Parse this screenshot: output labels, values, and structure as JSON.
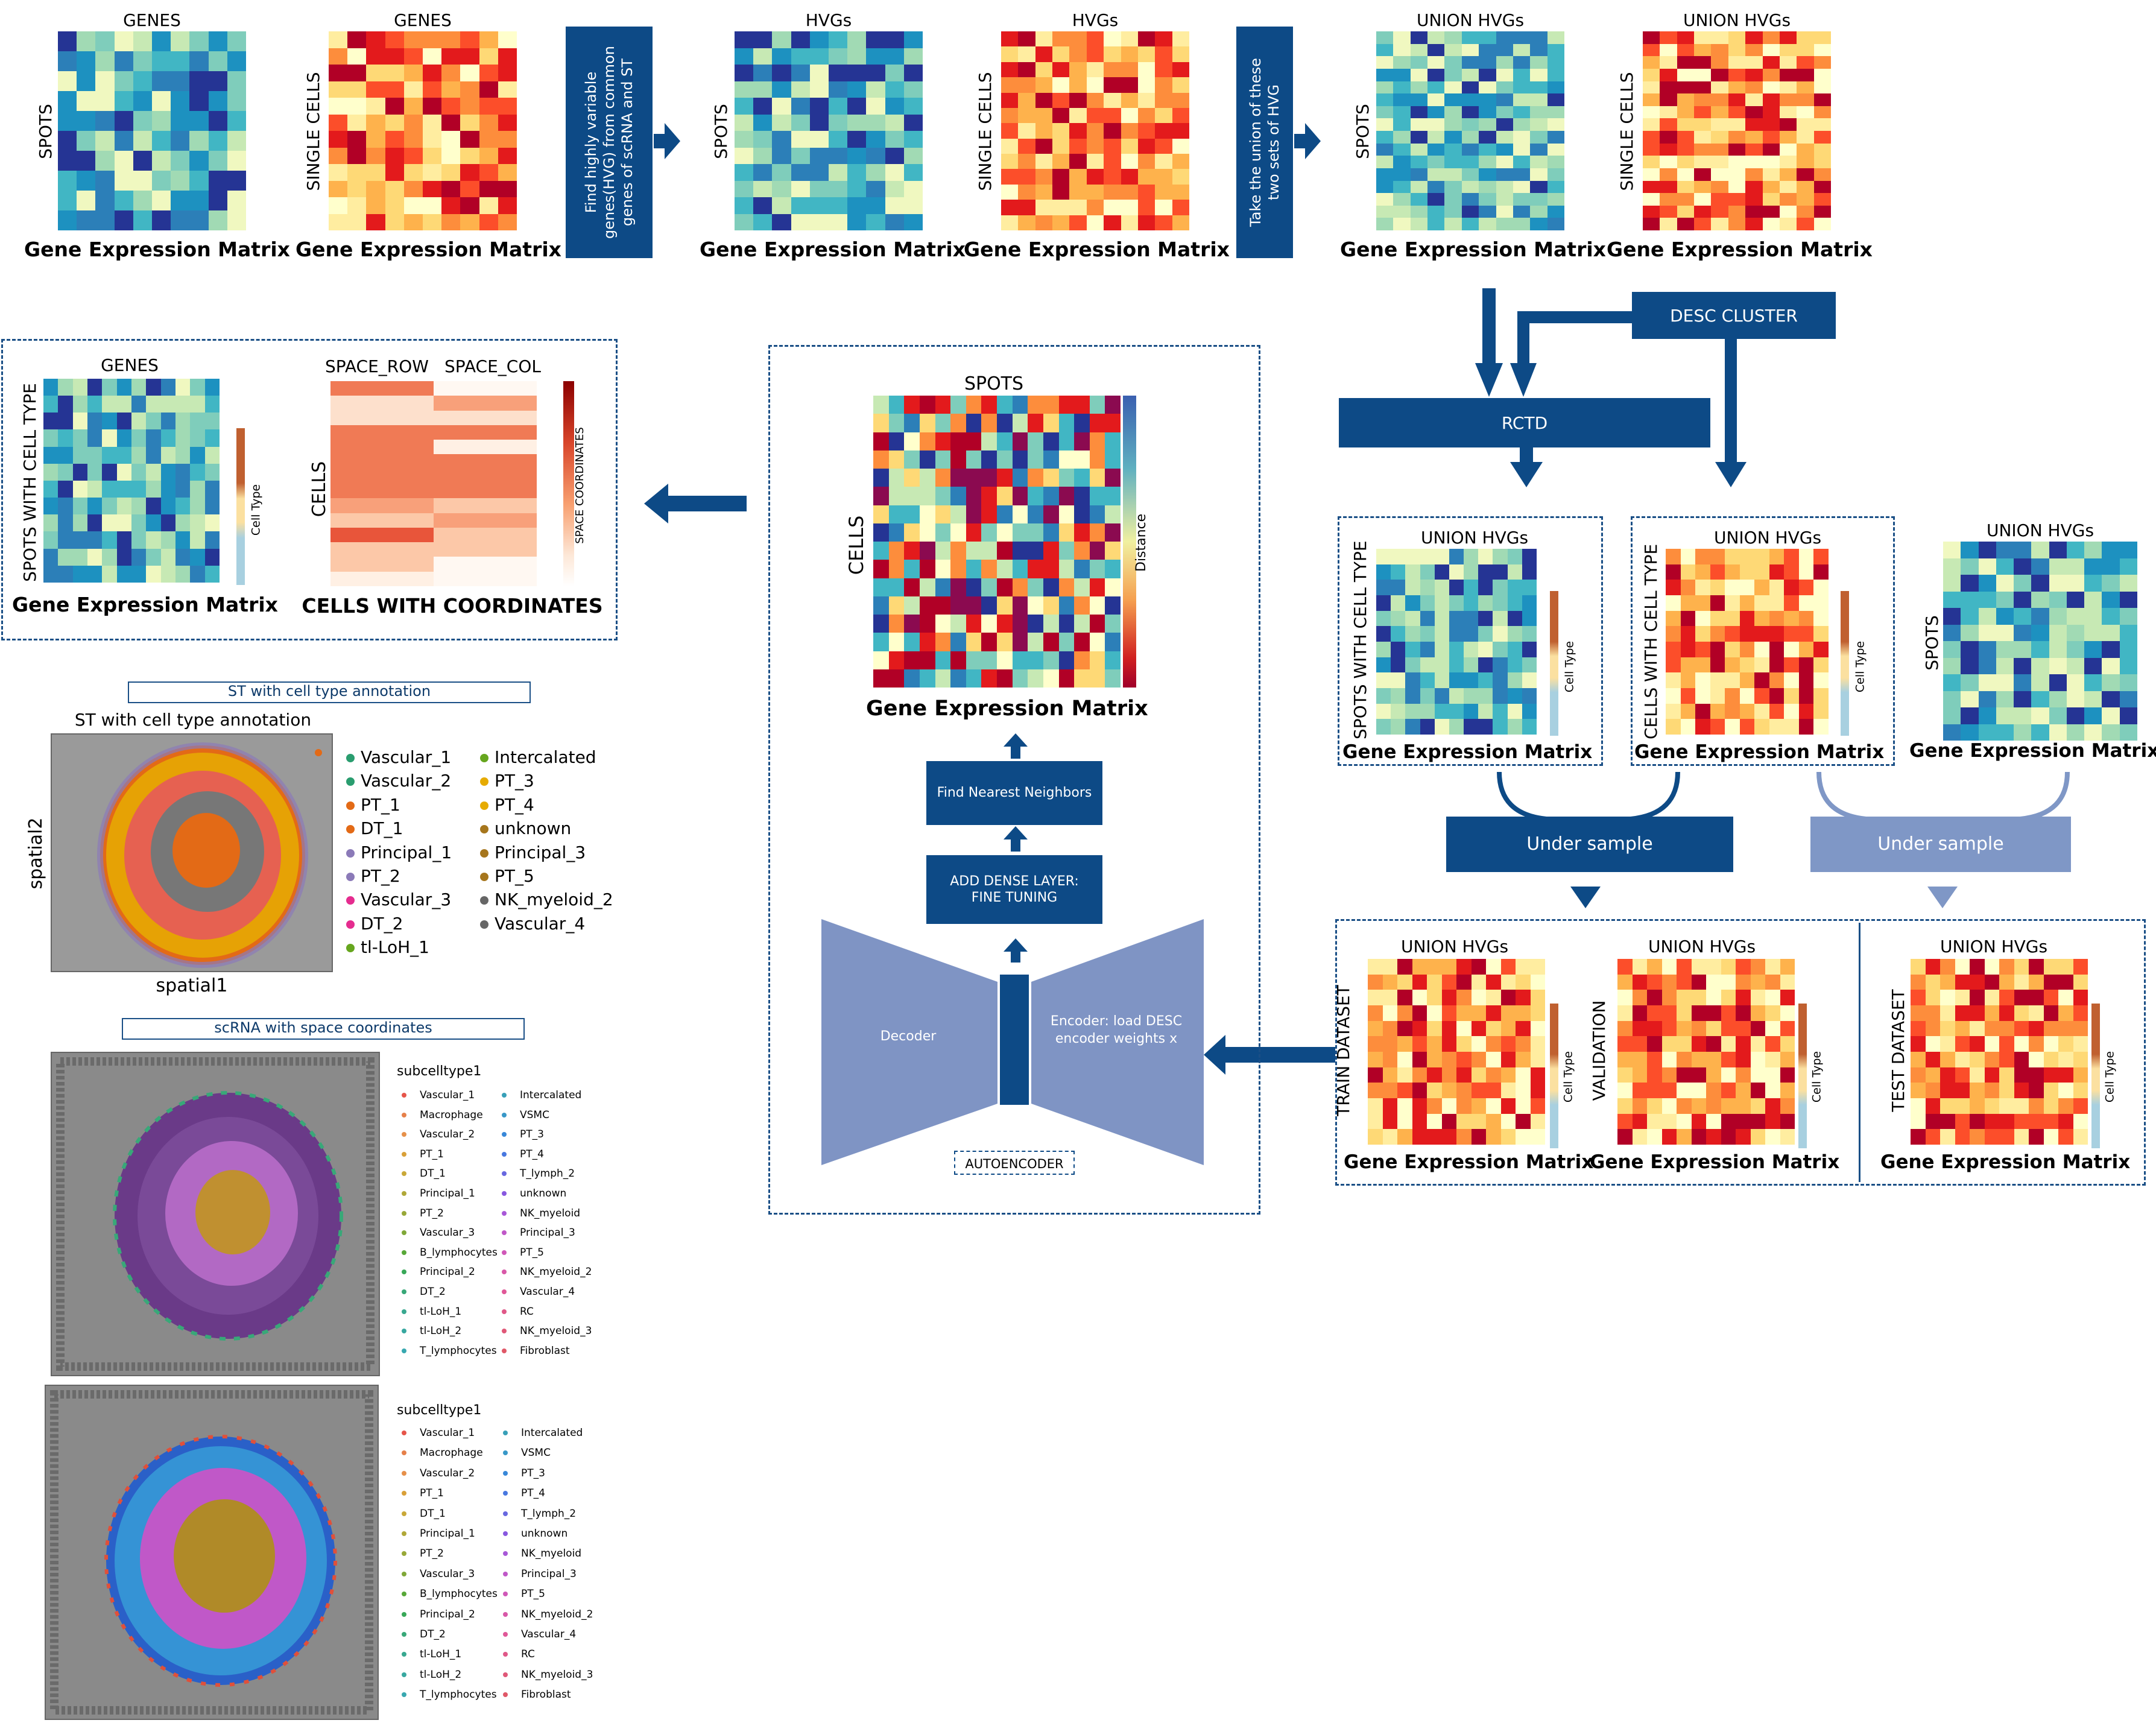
{
  "colors": {
    "navy": "#0d4a86",
    "light_navy": "#7f97c6",
    "autoencoder_shape": "#7f94c4",
    "cmap_blue": [
      "#f0f8c0",
      "#c7e9b4",
      "#7fcdbb",
      "#41b6c4",
      "#2c7fb8",
      "#253494",
      "#1d91c0",
      "#a1dab4"
    ],
    "cmap_red": [
      "#ffffcc",
      "#ffeda0",
      "#fed976",
      "#feb24c",
      "#fd8d3c",
      "#fc4e2a",
      "#e31a1c",
      "#b10026"
    ]
  },
  "top_row": {
    "m1": {
      "title": "GENES",
      "side": "SPOTS",
      "caption": "Gene Expression Matrix"
    },
    "m2": {
      "title": "GENES",
      "side": "SINGLE CELLS",
      "caption": "Gene Expression Matrix"
    },
    "step1": "Find highly variable genes(HVG) from common genes of scRNA and ST",
    "m3": {
      "title": "HVGs",
      "side": "SPOTS",
      "caption": "Gene Expression Matrix"
    },
    "m4": {
      "title": "HVGs",
      "side": "SINGLE CELLS",
      "caption": "Gene Expression Matrix"
    },
    "step2": "Take the union of these two sets of HVG",
    "m5": {
      "title": "UNION HVGs",
      "side": "SPOTS",
      "caption": "Gene Expression Matrix"
    },
    "m6": {
      "title": "UNION HVGs",
      "side": "SINGLE CELLS",
      "caption": "Gene Expression Matrix"
    }
  },
  "desc_cluster": "DESC CLUSTER",
  "rctd": "RCTD",
  "right_mid": {
    "a": {
      "title": "UNION HVGs",
      "side": "SPOTS WITH CELL TYPE",
      "caption": "Gene Expression Matrix",
      "cbar": "Cell Type"
    },
    "b": {
      "title": "UNION HVGs",
      "side": "CELLS WITH CELL TYPE",
      "caption": "Gene Expression Matrix",
      "cbar": "Cell Type"
    },
    "c": {
      "title": "UNION HVGs",
      "side": "SPOTS",
      "caption": "Gene Expression Matrix"
    }
  },
  "under_sample_1": "Under sample",
  "under_sample_2": "Under sample",
  "datasets": {
    "train": {
      "title": "UNION HVGs",
      "side": "TRAIN DATASET",
      "caption": "Gene Expression Matrix",
      "cbar": "Cell Type"
    },
    "val": {
      "title": "UNION HVGs",
      "side": "VALIDATION",
      "caption": "Gene Expression Matrix",
      "cbar": "Cell Type"
    },
    "test": {
      "title": "UNION HVGs",
      "side": "TEST DATASET",
      "caption": "Gene Expression Matrix",
      "cbar": "Cell Type"
    }
  },
  "center": {
    "title": "SPOTS",
    "side": "CELLS",
    "cbar": "Distance",
    "caption": "Gene Expression Matrix",
    "knn": "Find Nearest Neighbors",
    "dense": "ADD DENSE LAYER: FINE TUNING",
    "decoder": "Decoder",
    "encoder": "Encoder: load DESC encoder weights x",
    "ae_label": "AUTOENCODER"
  },
  "output": {
    "m1": {
      "title": "GENES",
      "side": "SPOTS WITH CELL TYPE",
      "caption": "Gene Expression Matrix",
      "cbar": "Cell Type"
    },
    "cols": [
      "SPACE_ROW",
      "SPACE_COL"
    ],
    "side2": "CELLS",
    "cbar2": "SPACE COORDINATES",
    "caption2": "CELLS WITH COORDINATES"
  },
  "st_panel": {
    "box_title": "ST with cell type annotation",
    "plot_title": "ST with cell type annotation",
    "xlabel": "spatial1",
    "ylabel": "spatial2",
    "legend_col1": [
      {
        "name": "Vascular_1",
        "color": "#2a9d6f"
      },
      {
        "name": "Vascular_2",
        "color": "#2a9d6f"
      },
      {
        "name": "PT_1",
        "color": "#e36a16"
      },
      {
        "name": "DT_1",
        "color": "#e36a16"
      },
      {
        "name": "Principal_1",
        "color": "#8b7ab8"
      },
      {
        "name": "PT_2",
        "color": "#8b7ab8"
      },
      {
        "name": "Vascular_3",
        "color": "#e52c8f"
      },
      {
        "name": "DT_2",
        "color": "#e52c8f"
      },
      {
        "name": "tl-LoH_1",
        "color": "#66a61e"
      }
    ],
    "legend_col2": [
      {
        "name": "Intercalated",
        "color": "#66a61e"
      },
      {
        "name": "PT_3",
        "color": "#e6ab02"
      },
      {
        "name": "PT_4",
        "color": "#e6ab02"
      },
      {
        "name": "unknown",
        "color": "#a6761d"
      },
      {
        "name": "Principal_3",
        "color": "#a6761d"
      },
      {
        "name": "PT_5",
        "color": "#a6761d"
      },
      {
        "name": "NK_myeloid_2",
        "color": "#666666"
      },
      {
        "name": "Vascular_4",
        "color": "#666666"
      }
    ]
  },
  "sc_panel": {
    "box_title": "scRNA with space coordinates",
    "legend_title_1": "subcelltype1",
    "legend_title_2": "subcelltype1",
    "legend_col1": [
      {
        "name": "Vascular_1",
        "color": "#e6554a"
      },
      {
        "name": "Macrophage",
        "color": "#e6804a"
      },
      {
        "name": "Vascular_2",
        "color": "#e6904a"
      },
      {
        "name": "PT_1",
        "color": "#d9a038"
      },
      {
        "name": "DT_1",
        "color": "#c9a838"
      },
      {
        "name": "Principal_1",
        "color": "#b0a838"
      },
      {
        "name": "PT_2",
        "color": "#98a838"
      },
      {
        "name": "Vascular_3",
        "color": "#80a838"
      },
      {
        "name": "B_lymphocytes",
        "color": "#58a838"
      },
      {
        "name": "Principal_2",
        "color": "#38a858"
      },
      {
        "name": "DT_2",
        "color": "#38a878"
      },
      {
        "name": "tl-LoH_1",
        "color": "#38a890"
      },
      {
        "name": "tl-LoH_2",
        "color": "#38a8a0"
      },
      {
        "name": "T_lymphocytes",
        "color": "#38a8b0"
      }
    ],
    "legend_col2": [
      {
        "name": "Intercalated",
        "color": "#38a0b8"
      },
      {
        "name": "VSMC",
        "color": "#3898c8"
      },
      {
        "name": "PT_3",
        "color": "#3888d8"
      },
      {
        "name": "PT_4",
        "color": "#4878e0"
      },
      {
        "name": "T_lymph_2",
        "color": "#6868e0"
      },
      {
        "name": "unknown",
        "color": "#8858e0"
      },
      {
        "name": "NK_myeloid",
        "color": "#a858d8"
      },
      {
        "name": "Principal_3",
        "color": "#c058c8"
      },
      {
        "name": "PT_5",
        "color": "#d058b8"
      },
      {
        "name": "NK_myeloid_2",
        "color": "#d858a8"
      },
      {
        "name": "Vascular_4",
        "color": "#e05898"
      },
      {
        "name": "RC",
        "color": "#e05888"
      },
      {
        "name": "NK_myeloid_3",
        "color": "#e05878"
      },
      {
        "name": "Fibroblast",
        "color": "#e05868"
      }
    ]
  }
}
